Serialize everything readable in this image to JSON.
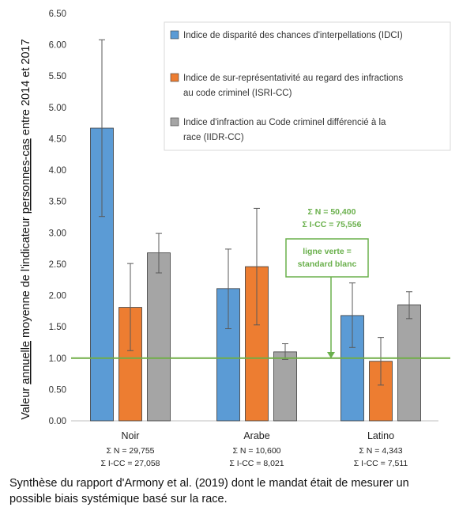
{
  "chart_data": {
    "type": "bar",
    "ylabel_parts": [
      "Valeur ",
      "annuelle",
      " moyenne de l'indicateur ",
      "personnes-cas",
      " entre 2014 et 2017"
    ],
    "ylim": [
      0,
      6.5
    ],
    "yticks": [
      "0.00",
      "0.50",
      "1.00",
      "1.50",
      "2.00",
      "2.50",
      "3.00",
      "3.50",
      "4.00",
      "4.50",
      "5.00",
      "5.50",
      "6.00",
      "6.50"
    ],
    "grid": false,
    "legend_position": "top-right",
    "categories": [
      {
        "name": "Noir",
        "sub1": "Σ N = 29,755",
        "sub2": "Σ I-CC = 27,058"
      },
      {
        "name": "Arabe",
        "sub1": "Σ N = 10,600",
        "sub2": "Σ I-CC = 8,021"
      },
      {
        "name": "Latino",
        "sub1": "Σ N = 4,343",
        "sub2": "Σ I-CC = 7,511"
      }
    ],
    "series": [
      {
        "name": "Indice de disparité des chances d'interpellations (IDCI)",
        "legend_lines": [
          "Indice de disparité des chances d'interpellations (IDCI)"
        ],
        "color": "#5b9bd5",
        "values": [
          4.67,
          2.11,
          1.68
        ],
        "err_low": [
          3.26,
          1.47,
          1.17
        ],
        "err_high": [
          6.08,
          2.74,
          2.2
        ]
      },
      {
        "name": "Indice de sur-représentativité au regard des infractions au code criminel (ISRI-CC)",
        "legend_lines": [
          "Indice de sur-représentativité au regard des infractions",
          "au code criminel (ISRI-CC)"
        ],
        "color": "#ed7d31",
        "values": [
          1.81,
          2.46,
          0.95
        ],
        "err_low": [
          1.12,
          1.53,
          0.57
        ],
        "err_high": [
          2.51,
          3.39,
          1.33
        ]
      },
      {
        "name": "Indice d'infraction au Code criminel différencié à la race (IIDR-CC)",
        "legend_lines": [
          "Indice d'infraction au Code criminel différencié à la",
          "race (IIDR-CC)"
        ],
        "color": "#a5a5a5",
        "values": [
          2.68,
          1.1,
          1.85
        ],
        "err_low": [
          2.36,
          0.98,
          1.63
        ],
        "err_high": [
          2.99,
          1.23,
          2.06
        ]
      }
    ],
    "reference_line": {
      "value": 1.0,
      "color": "#70ad47"
    },
    "annotations": {
      "totals_line1": "Σ N = 50,400",
      "totals_line2": "Σ I-CC = 75,556",
      "box_line1": "ligne verte =",
      "box_line2": "standard blanc"
    }
  },
  "caption": "Synthèse du rapport d'Armony et al. (2019) dont le mandat était de mesurer un possible biais systémique basé sur la race."
}
